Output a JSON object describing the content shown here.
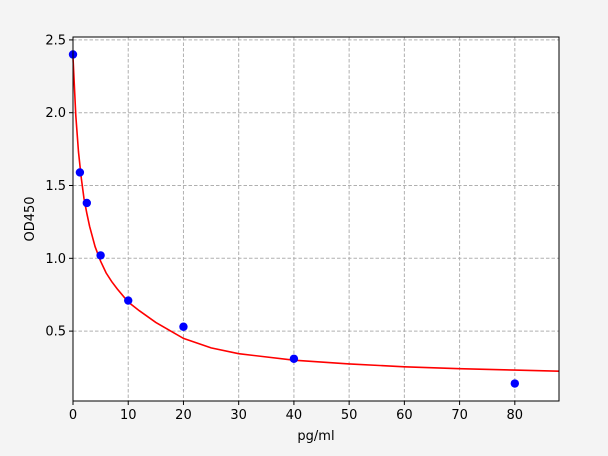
{
  "chart_data": {
    "type": "scatter",
    "xlabel": "pg/ml",
    "ylabel": "OD450",
    "xlim": [
      0,
      88
    ],
    "ylim": [
      0.02,
      2.52
    ],
    "grid": true,
    "xticks": [
      0,
      10,
      20,
      30,
      40,
      50,
      60,
      70,
      80
    ],
    "xtick_labels": [
      "0",
      "10",
      "20",
      "30",
      "40",
      "50",
      "60",
      "70",
      "80"
    ],
    "yticks": [
      0.5,
      1.0,
      1.5,
      2.0,
      2.5
    ],
    "ytick_labels": [
      "0.5",
      "1.0",
      "1.5",
      "2.0",
      "2.5"
    ],
    "points": {
      "x": [
        0,
        1.25,
        2.5,
        5,
        10,
        20,
        40,
        80
      ],
      "y": [
        2.4,
        1.59,
        1.38,
        1.02,
        0.71,
        0.53,
        0.31,
        0.14
      ]
    },
    "fit_curve": {
      "x": [
        0,
        0.5,
        1,
        1.5,
        2,
        2.5,
        3,
        4,
        5,
        6,
        7,
        8,
        10,
        12,
        15,
        20,
        25,
        30,
        40,
        50,
        60,
        70,
        80,
        88
      ],
      "y": [
        2.38,
        1.98,
        1.73,
        1.55,
        1.41,
        1.31,
        1.22,
        1.08,
        0.98,
        0.9,
        0.84,
        0.79,
        0.7,
        0.64,
        0.56,
        0.45,
        0.385,
        0.345,
        0.3,
        0.275,
        0.255,
        0.242,
        0.232,
        0.225
      ]
    },
    "colors": {
      "points": "#0000ff",
      "curve": "#ff0000",
      "grid": "#b0b0b0",
      "background": "#ffffff",
      "figure_background": "#f4f4f4"
    }
  }
}
